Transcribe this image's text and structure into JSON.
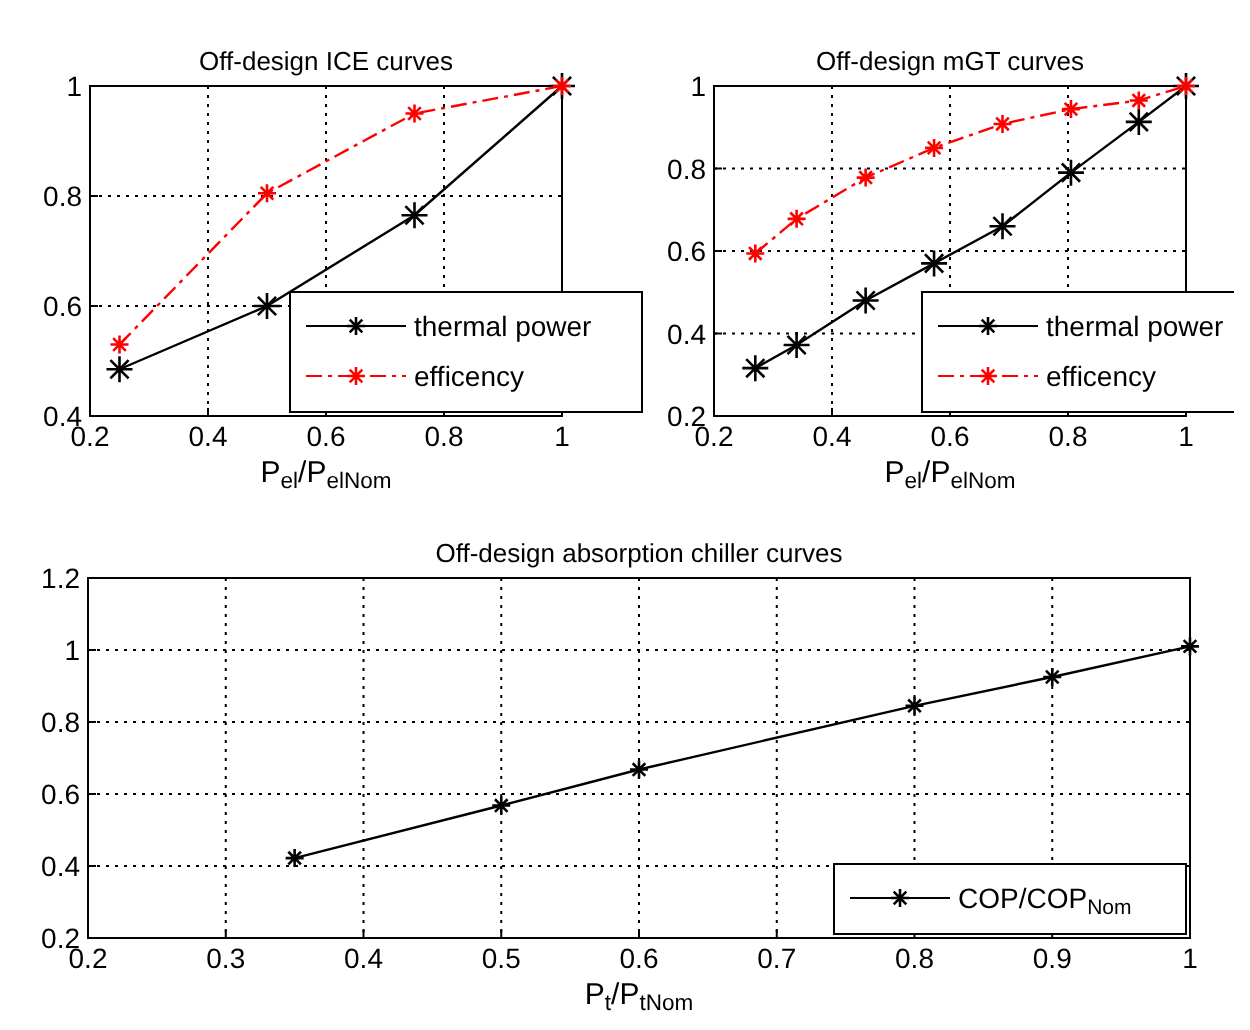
{
  "chart_data": [
    {
      "type": "line",
      "title": "Off-design ICE curves",
      "xlabel": "P$_{el}$/P$_{elNom}$",
      "x": [
        0.25,
        0.5,
        0.75,
        1
      ],
      "xlim": [
        0.2,
        1
      ],
      "xticks": [
        0.2,
        0.4,
        0.6,
        0.8,
        1
      ],
      "ylim": [
        0.4,
        1
      ],
      "yticks": [
        0.4,
        0.6,
        0.8,
        1
      ],
      "grid": true,
      "legend": "bottom right",
      "marker": "cross",
      "series": [
        {
          "name": "thermal power",
          "color": "#000000",
          "line_style": "solid",
          "values": [
            0.485,
            0.6,
            0.765,
            1
          ]
        },
        {
          "name": "efficency",
          "color": "#ff0000",
          "line_style": "dashed",
          "values": [
            0.53,
            0.805,
            0.95,
            1
          ]
        }
      ]
    },
    {
      "type": "line",
      "title": "Off-design mGT curves",
      "xlabel": "P$_{el}$/P$_{elNom}$",
      "x": [
        0.27,
        0.34,
        0.457,
        0.573,
        0.689,
        0.805,
        0.92,
        1
      ],
      "xlim": [
        0.2,
        1
      ],
      "xticks": [
        0.2,
        0.4,
        0.6,
        0.8,
        1
      ],
      "ylim": [
        0.2,
        1
      ],
      "yticks": [
        0.2,
        0.4,
        0.6,
        0.8,
        1
      ],
      "grid": true,
      "legend": "bottom right",
      "marker": "cross",
      "series": [
        {
          "name": "thermal power",
          "color": "#000000",
          "line_style": "solid",
          "values": [
            0.316,
            0.372,
            0.48,
            0.57,
            0.66,
            0.79,
            0.913,
            1
          ]
        },
        {
          "name": "efficency",
          "color": "#ff0000",
          "line_style": "dashed",
          "values": [
            0.594,
            0.678,
            0.778,
            0.85,
            0.908,
            0.944,
            0.965,
            1
          ]
        }
      ]
    },
    {
      "type": "line",
      "title": "Off-design absorption chiller curves",
      "xlabel": "P$_{t}$/P$_{tNom}$",
      "x": [
        0.35,
        0.5,
        0.6,
        0.8,
        0.9,
        1
      ],
      "xlim": [
        0.2,
        1
      ],
      "xticks": [
        0.2,
        0.3,
        0.4,
        0.5,
        0.6,
        0.7,
        0.8,
        0.9,
        1
      ],
      "ylim": [
        0.2,
        1.2
      ],
      "yticks": [
        0.2,
        0.4,
        0.6,
        0.8,
        1,
        1.2
      ],
      "grid": true,
      "legend": "bottom right",
      "marker": "cross",
      "series": [
        {
          "name": "COP/COP$_{Nom}$",
          "color": "#000000",
          "line_style": "solid",
          "values": [
            0.422,
            0.568,
            0.668,
            0.845,
            0.925,
            1.01
          ]
        }
      ]
    }
  ]
}
